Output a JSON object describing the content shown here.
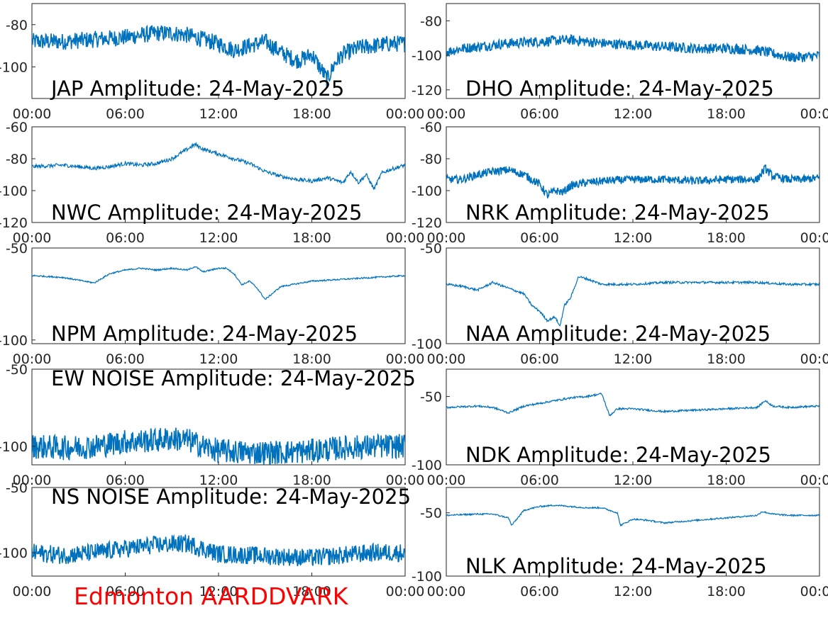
{
  "footer_label": "Edmonton AARDDVARK",
  "colors": {
    "series": "#0072bd",
    "axis": "#262626",
    "footer": "#ff0000"
  },
  "chart_data": [
    {
      "type": "line",
      "title": "JAP Amplitude: 24-May-2025",
      "x_ticks": [
        "00:00",
        "06:00",
        "12:00",
        "18:00",
        "00:00"
      ],
      "xlim": [
        0,
        24
      ],
      "y_ticks": [
        -80,
        -100
      ],
      "y_tick_labels": [
        "-80",
        "-100"
      ],
      "ylim": [
        -115,
        -70
      ],
      "noise": 4,
      "series": [
        {
          "x": [
            0,
            2,
            4,
            6,
            8,
            9,
            10,
            11,
            12,
            13,
            14,
            15,
            16,
            17,
            17.5,
            18,
            18.5,
            19,
            19.5,
            20,
            21,
            22,
            23,
            24
          ],
          "y": [
            -88,
            -88,
            -87,
            -86,
            -84,
            -84,
            -85,
            -87,
            -89,
            -92,
            -90,
            -88,
            -93,
            -97,
            -96,
            -94,
            -100,
            -106,
            -98,
            -94,
            -91,
            -90,
            -89,
            -89
          ]
        }
      ]
    },
    {
      "type": "line",
      "title": "DHO Amplitude: 24-May-2025",
      "x_ticks": [
        "00:00",
        "06:00",
        "12:00",
        "18:00",
        "00:00"
      ],
      "xlim": [
        0,
        24
      ],
      "y_ticks": [
        -80,
        -100,
        -120
      ],
      "y_tick_labels": [
        "-80",
        "-100",
        "-120"
      ],
      "ylim": [
        -125,
        -70
      ],
      "noise": 3,
      "series": [
        {
          "x": [
            0,
            1,
            2,
            3,
            4,
            6,
            8,
            10,
            12,
            14,
            16,
            18,
            20,
            21,
            22,
            23,
            24
          ],
          "y": [
            -98,
            -96,
            -95,
            -94,
            -93,
            -92,
            -91,
            -93,
            -94,
            -95,
            -96,
            -96,
            -97,
            -99,
            -101,
            -101,
            -100
          ]
        }
      ]
    },
    {
      "type": "line",
      "title": "NWC Amplitude: 24-May-2025",
      "x_ticks": [
        "00:00",
        "06:00",
        "12:00",
        "18:00",
        "00:00"
      ],
      "xlim": [
        0,
        24
      ],
      "y_ticks": [
        -60,
        -80,
        -100,
        -120
      ],
      "y_tick_labels": [
        "-60",
        "-80",
        "-100",
        "-120"
      ],
      "ylim": [
        -120,
        -60
      ],
      "noise": 1.2,
      "series": [
        {
          "x": [
            0,
            2,
            4,
            5,
            6,
            7,
            8,
            9,
            10,
            10.5,
            11,
            12,
            13,
            14,
            15,
            16,
            17,
            18,
            19,
            20,
            20.5,
            21,
            21.5,
            22,
            22.5,
            23,
            24
          ],
          "y": [
            -85,
            -84,
            -86,
            -85,
            -83,
            -84,
            -83,
            -80,
            -74,
            -71,
            -74,
            -77,
            -80,
            -83,
            -88,
            -91,
            -93,
            -94,
            -92,
            -95,
            -88,
            -95,
            -90,
            -99,
            -89,
            -87,
            -84
          ]
        }
      ]
    },
    {
      "type": "line",
      "title": "NRK Amplitude: 24-May-2025",
      "x_ticks": [
        "00:00",
        "06:00",
        "12:00",
        "18:00",
        "00:00"
      ],
      "xlim": [
        0,
        24
      ],
      "y_ticks": [
        -60,
        -80,
        -100,
        -120
      ],
      "y_tick_labels": [
        "-60",
        "-80",
        "-100",
        "-120"
      ],
      "ylim": [
        -120,
        -60
      ],
      "noise": 2.5,
      "series": [
        {
          "x": [
            0,
            1,
            2,
            3,
            4,
            5,
            6,
            6.5,
            7,
            7.5,
            8,
            9,
            10,
            12,
            14,
            16,
            18,
            19,
            20,
            20.5,
            21,
            22,
            23,
            24
          ],
          "y": [
            -93,
            -93,
            -90,
            -88,
            -87,
            -90,
            -96,
            -103,
            -100,
            -101,
            -97,
            -95,
            -94,
            -93,
            -93,
            -94,
            -93,
            -93,
            -93,
            -86,
            -91,
            -93,
            -93,
            -92
          ]
        }
      ]
    },
    {
      "type": "line",
      "title": "NPM Amplitude: 24-May-2025",
      "x_ticks": [
        "00:00",
        "06:00",
        "12:00",
        "18:00",
        "00:00"
      ],
      "xlim": [
        0,
        24
      ],
      "y_ticks": [
        -50,
        -100
      ],
      "y_tick_labels": [
        "-50",
        "-100"
      ],
      "ylim": [
        -102,
        -50
      ],
      "noise": 0.4,
      "series": [
        {
          "x": [
            0,
            2,
            4,
            5,
            6,
            7,
            8,
            9,
            10,
            10.5,
            11,
            12,
            12.5,
            13,
            13.5,
            14,
            14.5,
            15,
            16,
            18,
            20,
            22,
            24
          ],
          "y": [
            -65,
            -66,
            -69,
            -64,
            -62,
            -61,
            -62,
            -61,
            -62,
            -60,
            -63,
            -61,
            -61,
            -64,
            -70,
            -68,
            -72,
            -78,
            -71,
            -68,
            -67,
            -66,
            -65
          ]
        }
      ]
    },
    {
      "type": "line",
      "title": "NAA Amplitude: 24-May-2025",
      "x_ticks": [
        "00:00",
        "06:00",
        "12:00",
        "18:00",
        "00:00"
      ],
      "xlim": [
        0,
        24
      ],
      "y_ticks": [
        -50,
        -100
      ],
      "y_tick_labels": [
        "-50",
        "-100"
      ],
      "ylim": [
        -100,
        -50
      ],
      "noise": 0.6,
      "series": [
        {
          "x": [
            0,
            1,
            2,
            3,
            4,
            5,
            5.5,
            6,
            6.5,
            7,
            7.3,
            7.6,
            8,
            8.5,
            9,
            10,
            12,
            14,
            16,
            18,
            20,
            22,
            24
          ],
          "y": [
            -69,
            -70,
            -72,
            -68,
            -71,
            -74,
            -80,
            -83,
            -88,
            -86,
            -91,
            -80,
            -76,
            -65,
            -66,
            -69,
            -69,
            -68,
            -68,
            -68,
            -68,
            -69,
            -69
          ]
        }
      ]
    },
    {
      "type": "line",
      "title": "EW NOISE Amplitude: 24-May-2025",
      "x_ticks": [
        "00:00",
        "06:00",
        "12:00",
        "18:00",
        "00:00"
      ],
      "xlim": [
        0,
        24
      ],
      "y_ticks": [
        -50,
        -100
      ],
      "y_tick_labels": [
        "-50",
        "-100"
      ],
      "ylim": [
        -112,
        -50
      ],
      "noise": 8,
      "series": [
        {
          "x": [
            0,
            2,
            4,
            6,
            8,
            9,
            10,
            11,
            12,
            14,
            16,
            18,
            20,
            22,
            24
          ],
          "y": [
            -100,
            -101,
            -100,
            -97,
            -96,
            -95,
            -96,
            -100,
            -103,
            -104,
            -104,
            -103,
            -101,
            -100,
            -100
          ]
        }
      ]
    },
    {
      "type": "line",
      "title": "NDK Amplitude: 24-May-2025",
      "x_ticks": [
        "00:00",
        "06:00",
        "12:00",
        "18:00",
        "00:00"
      ],
      "xlim": [
        0,
        24
      ],
      "y_ticks": [
        -50,
        -100
      ],
      "y_tick_labels": [
        "-50",
        "-100"
      ],
      "ylim": [
        -100,
        -30
      ],
      "noise": 0.7,
      "series": [
        {
          "x": [
            0,
            2,
            3,
            4,
            5,
            6,
            7,
            8,
            9,
            10,
            10.5,
            11,
            12,
            14,
            16,
            18,
            20,
            20.5,
            21,
            22,
            24
          ],
          "y": [
            -58,
            -57,
            -58,
            -62,
            -57,
            -55,
            -53,
            -51,
            -50,
            -48,
            -64,
            -59,
            -59,
            -61,
            -60,
            -59,
            -58,
            -53,
            -57,
            -58,
            -57
          ]
        }
      ]
    },
    {
      "type": "line",
      "title": "NS NOISE Amplitude: 24-May-2025",
      "x_ticks": [
        "00:00",
        "06:00",
        "12:00",
        "18:00",
        "00:00"
      ],
      "xlim": [
        0,
        24
      ],
      "y_ticks": [
        -50,
        -100
      ],
      "y_tick_labels": [
        "-50",
        "-100"
      ],
      "ylim": [
        -118,
        -50
      ],
      "noise": 7,
      "series": [
        {
          "x": [
            0,
            2,
            4,
            6,
            8,
            10,
            11,
            12,
            14,
            16,
            18,
            20,
            22,
            24
          ],
          "y": [
            -100,
            -102,
            -100,
            -97,
            -94,
            -93,
            -97,
            -101,
            -102,
            -103,
            -104,
            -102,
            -100,
            -100
          ]
        }
      ]
    },
    {
      "type": "line",
      "title": "NLK Amplitude: 24-May-2025",
      "x_ticks": [
        "00:00",
        "06:00",
        "12:00",
        "18:00",
        "00:00"
      ],
      "xlim": [
        0,
        24
      ],
      "y_ticks": [
        -50,
        -100
      ],
      "y_tick_labels": [
        "-50",
        "-100"
      ],
      "ylim": [
        -100,
        -30
      ],
      "noise": 0.6,
      "series": [
        {
          "x": [
            0,
            2,
            3,
            4,
            4.2,
            5,
            6,
            7,
            8,
            9,
            10,
            11,
            11.2,
            12,
            13,
            14,
            16,
            18,
            20,
            20.3,
            21,
            22,
            24
          ],
          "y": [
            -52,
            -51,
            -51,
            -54,
            -60,
            -48,
            -45,
            -44,
            -45,
            -46,
            -46,
            -50,
            -60,
            -55,
            -56,
            -58,
            -56,
            -54,
            -52,
            -49,
            -51,
            -52,
            -52
          ]
        }
      ]
    }
  ]
}
